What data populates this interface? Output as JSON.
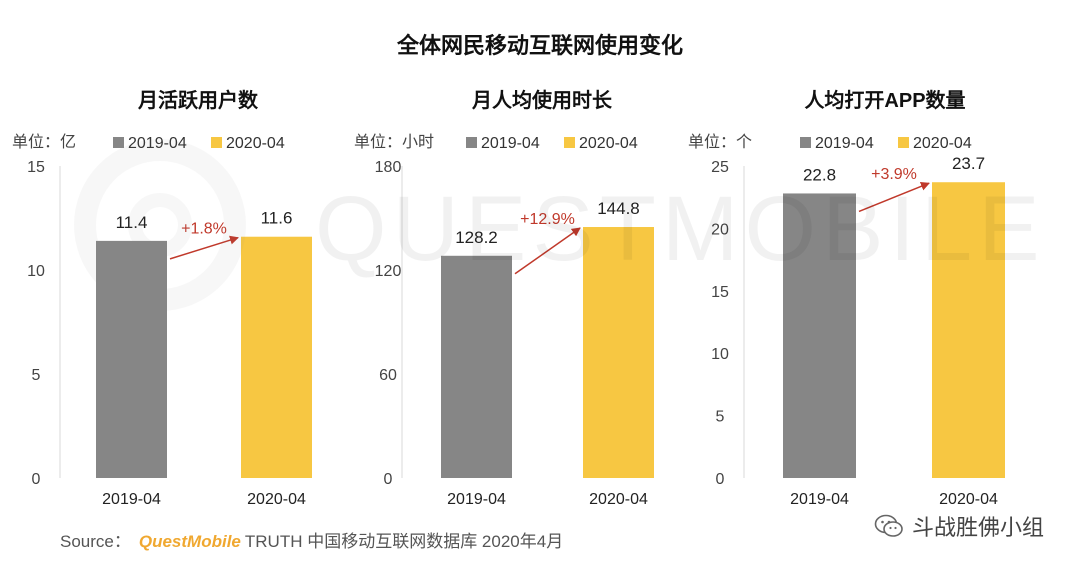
{
  "title": "全体网民移动互联网使用变化",
  "colors": {
    "series_2019": "#868686",
    "series_2020": "#f7c742",
    "growth": "#c0392b"
  },
  "watermark_text": "QUESTMOBILE",
  "source": {
    "prefix": "Source：",
    "brand": "QuestMobile",
    "text": "TRUTH 中国移动互联网数据库 2020年4月"
  },
  "wechat_account": "斗战胜佛小组",
  "chart_data": [
    {
      "type": "bar",
      "title": "月活跃用户数",
      "unit_label": "单位：亿",
      "categories": [
        "2019-04",
        "2020-04"
      ],
      "series": [
        {
          "name": "2019-04",
          "values": [
            11.4,
            null
          ]
        },
        {
          "name": "2020-04",
          "values": [
            null,
            11.6
          ]
        }
      ],
      "values": [
        11.4,
        11.6
      ],
      "data_labels": [
        "11.4",
        "11.6"
      ],
      "growth_label": "+1.8%",
      "ylim": [
        0,
        15
      ],
      "yticks": [
        0,
        5,
        10,
        15
      ],
      "legend": "top"
    },
    {
      "type": "bar",
      "title": "月人均使用时长",
      "unit_label": "单位：小时",
      "categories": [
        "2019-04",
        "2020-04"
      ],
      "series": [
        {
          "name": "2019-04",
          "values": [
            128.2,
            null
          ]
        },
        {
          "name": "2020-04",
          "values": [
            null,
            144.8
          ]
        }
      ],
      "values": [
        128.2,
        144.8
      ],
      "data_labels": [
        "128.2",
        "144.8"
      ],
      "growth_label": "+12.9%",
      "ylim": [
        0,
        180
      ],
      "yticks": [
        0,
        60,
        120,
        180
      ],
      "legend": "top"
    },
    {
      "type": "bar",
      "title": "人均打开APP数量",
      "unit_label": "单位：个",
      "categories": [
        "2019-04",
        "2020-04"
      ],
      "series": [
        {
          "name": "2019-04",
          "values": [
            22.8,
            null
          ]
        },
        {
          "name": "2020-04",
          "values": [
            null,
            23.7
          ]
        }
      ],
      "values": [
        22.8,
        23.7
      ],
      "data_labels": [
        "22.8",
        "23.7"
      ],
      "growth_label": "+3.9%",
      "ylim": [
        0,
        25
      ],
      "yticks": [
        0,
        5,
        10,
        15,
        20,
        25
      ],
      "legend": "top"
    }
  ]
}
